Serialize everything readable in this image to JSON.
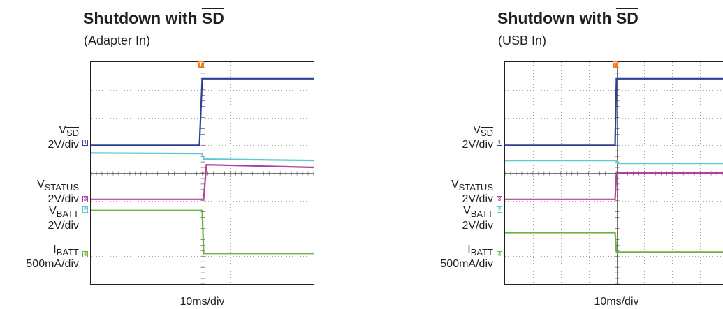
{
  "chart_data": [
    {
      "type": "line",
      "title_prefix": "Shutdown with ",
      "title_signal": "SD",
      "subtitle": "(Adapter In)",
      "xlabel": "10ms/div",
      "divisions": {
        "x": 8,
        "y": 8
      },
      "xlim": [
        0,
        8
      ],
      "ylim": [
        0,
        8
      ],
      "trigger_marker": "T",
      "trigger_x": 4.0,
      "series": [
        {
          "name": "VSD",
          "marker": "1",
          "color": "#2e3f93",
          "x": [
            0,
            3.9,
            4.0,
            8
          ],
          "y": [
            5.0,
            5.0,
            7.4,
            7.4
          ]
        },
        {
          "name": "VSTATUS",
          "marker": "3",
          "color": "#b0409f",
          "x": [
            0,
            4.05,
            4.15,
            8
          ],
          "y": [
            3.05,
            3.05,
            4.3,
            4.2
          ]
        },
        {
          "name": "VBATT",
          "marker": "2",
          "color": "#5cc8d6",
          "x": [
            0,
            4.0,
            4.05,
            8
          ],
          "y": [
            4.72,
            4.7,
            4.5,
            4.45
          ]
        },
        {
          "name": "IBATT",
          "marker": "4",
          "color": "#6ab33e",
          "x": [
            0,
            4.0,
            4.05,
            8
          ],
          "y": [
            2.65,
            2.65,
            1.1,
            1.1
          ]
        }
      ],
      "labels": [
        {
          "name": "V",
          "sub": "SD",
          "overline": true,
          "scale": "2V/div"
        },
        {
          "name": "V",
          "sub": "STATUS",
          "overline": false,
          "scale": "2V/div"
        },
        {
          "name": "V",
          "sub": "BATT",
          "overline": false,
          "scale": "2V/div"
        },
        {
          "name": "I",
          "sub": "BATT",
          "overline": false,
          "scale": "500mA/div"
        }
      ]
    },
    {
      "type": "line",
      "title_prefix": "Shutdown with ",
      "title_signal": "SD",
      "subtitle": "(USB In)",
      "xlabel": "10ms/div",
      "divisions": {
        "x": 8,
        "y": 8
      },
      "xlim": [
        0,
        8
      ],
      "ylim": [
        0,
        8
      ],
      "trigger_marker": "T",
      "trigger_x": 4.0,
      "series": [
        {
          "name": "VSD",
          "marker": "1",
          "color": "#2e3f93",
          "x": [
            0,
            3.95,
            4.0,
            8
          ],
          "y": [
            5.0,
            5.0,
            7.4,
            7.4
          ]
        },
        {
          "name": "VSTATUS",
          "marker": "3",
          "color": "#b0409f",
          "x": [
            0,
            3.95,
            4.0,
            8
          ],
          "y": [
            3.05,
            3.05,
            4.0,
            4.0
          ]
        },
        {
          "name": "VBATT",
          "marker": "2",
          "color": "#5cc8d6",
          "x": [
            0,
            4.0,
            4.05,
            8
          ],
          "y": [
            4.45,
            4.45,
            4.35,
            4.35
          ]
        },
        {
          "name": "IBATT",
          "marker": "4",
          "color": "#6ab33e",
          "x": [
            0,
            3.95,
            4.0,
            8
          ],
          "y": [
            1.85,
            1.85,
            1.15,
            1.15
          ]
        }
      ],
      "labels": [
        {
          "name": "V",
          "sub": "SD",
          "overline": true,
          "scale": "2V/div"
        },
        {
          "name": "V",
          "sub": "STATUS",
          "overline": false,
          "scale": "2V/div"
        },
        {
          "name": "V",
          "sub": "BATT",
          "overline": false,
          "scale": "2V/div"
        },
        {
          "name": "I",
          "sub": "BATT",
          "overline": false,
          "scale": "500mA/div"
        }
      ]
    }
  ]
}
